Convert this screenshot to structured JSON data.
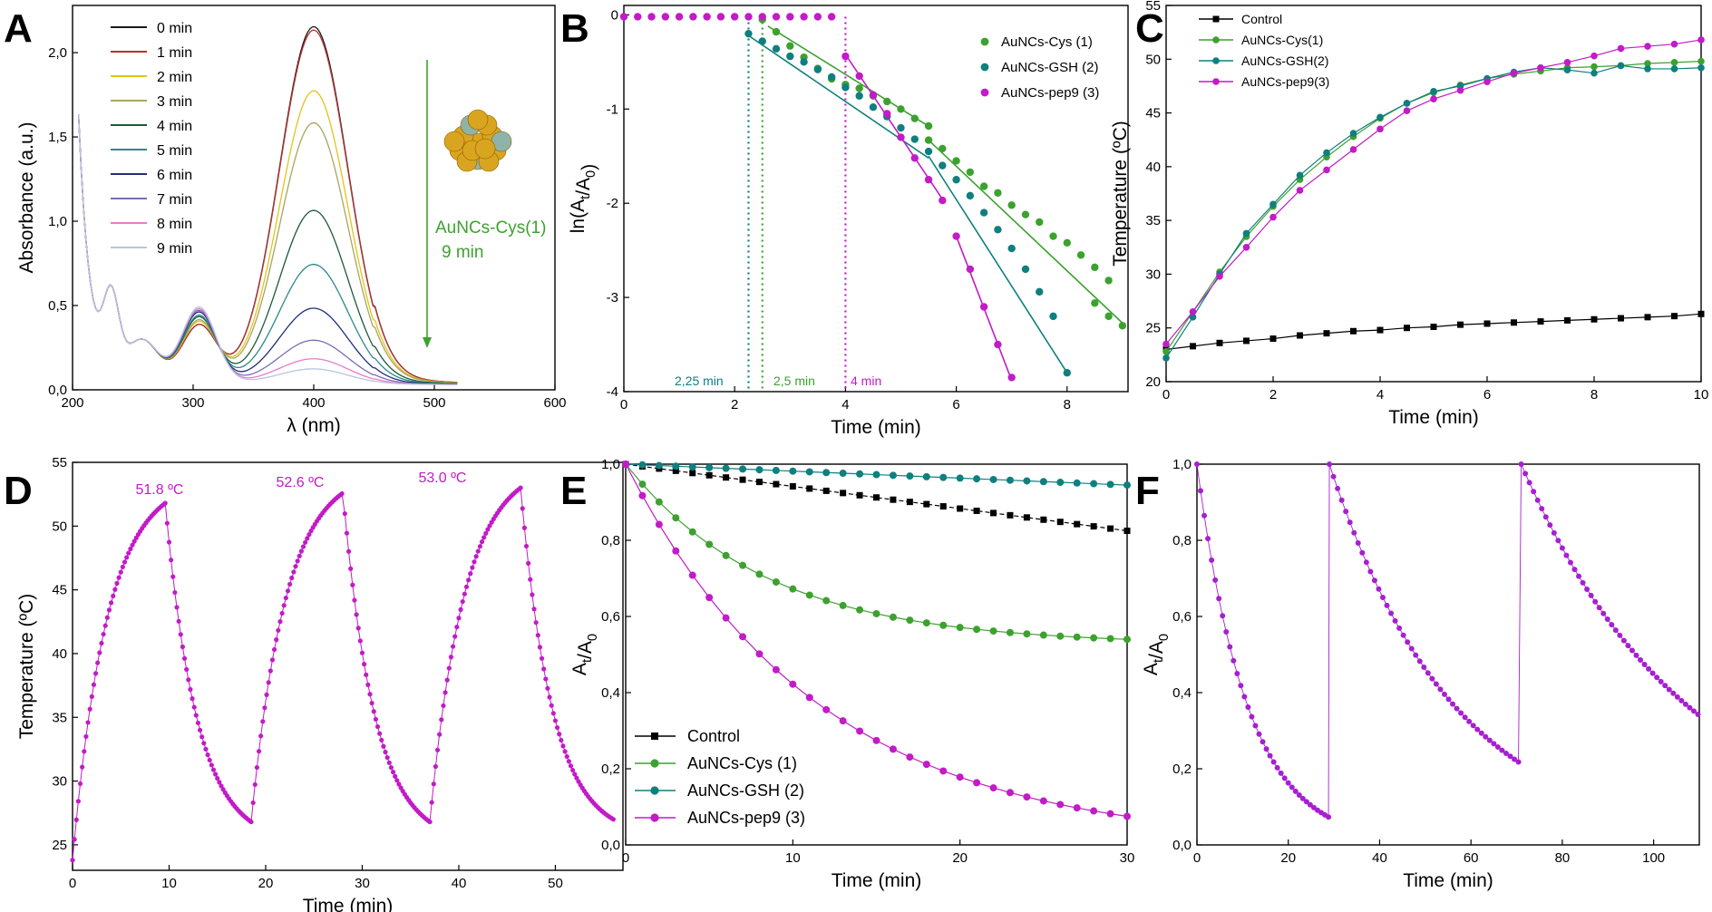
{
  "colors": {
    "green": "#3da12f",
    "teal": "#0f7f7f",
    "magenta": "#c21bc7",
    "magenta_light": "#e060e6",
    "purple": "#a61fd0",
    "black": "#000000",
    "cluster": "#d9a520"
  },
  "chart_data": [
    {
      "id": "A",
      "panel_letter": "A",
      "type": "line",
      "xlabel": "λ (nm)",
      "ylabel": "Absorbance (a.u.)",
      "xlim": [
        200,
        600
      ],
      "ylim": [
        0,
        2.28
      ],
      "xticks": [
        200,
        300,
        400,
        500,
        600
      ],
      "yticks": [
        0,
        0.5,
        1.0,
        1.5,
        2.0
      ],
      "ytick_labels": [
        "0,0",
        "0,5",
        "1,0",
        "1,5",
        "2,0"
      ],
      "legend_placement": "top-left",
      "annotation": {
        "label": "AuNCs-Cys(1)",
        "sub": "9 min"
      },
      "series": [
        {
          "name": "0 min",
          "color": "#1a1a1a",
          "peak": 2.12,
          "shoulder": 0.33
        },
        {
          "name": "1 min",
          "color": "#b8332f",
          "peak": 2.1,
          "shoulder": 0.33
        },
        {
          "name": "2 min",
          "color": "#e3c31a",
          "peak": 1.74,
          "shoulder": 0.35
        },
        {
          "name": "3 min",
          "color": "#a7a65e",
          "peak": 1.55,
          "shoulder": 0.36
        },
        {
          "name": "4 min",
          "color": "#1d5a3c",
          "peak": 1.03,
          "shoulder": 0.38
        },
        {
          "name": "5 min",
          "color": "#2b8a88",
          "peak": 0.71,
          "shoulder": 0.39
        },
        {
          "name": "6 min",
          "color": "#1e2f7a",
          "peak": 0.45,
          "shoulder": 0.41
        },
        {
          "name": "7 min",
          "color": "#7b6bb8",
          "peak": 0.26,
          "shoulder": 0.42
        },
        {
          "name": "8 min",
          "color": "#e57ccb",
          "peak": 0.15,
          "shoulder": 0.43
        },
        {
          "name": "9 min",
          "color": "#b9c4de",
          "peak": 0.09,
          "shoulder": 0.44
        }
      ]
    },
    {
      "id": "B",
      "panel_letter": "B",
      "type": "scatter",
      "xlabel": "Time (min)",
      "ylabel": "ln(A_t/A_0)",
      "xlim": [
        0,
        9.1
      ],
      "ylim": [
        -4,
        0.1
      ],
      "xticks": [
        0,
        2,
        4,
        6,
        8
      ],
      "yticks": [
        0,
        -1,
        -2,
        -3,
        -4
      ],
      "legend_placement": "top-right",
      "onsets": [
        {
          "label": "2,25 min",
          "x": 2.25,
          "color": "#0f7f7f"
        },
        {
          "label": "2,5 min",
          "x": 2.5,
          "color": "#3da12f"
        },
        {
          "label": "4 min",
          "x": 4.0,
          "color": "#c21bc7"
        }
      ],
      "series": [
        {
          "name": "AuNCs-Cys (1)",
          "color": "#3da12f",
          "points": [
            [
              2.5,
              -0.05
            ],
            [
              2.75,
              -0.18
            ],
            [
              3.0,
              -0.33
            ],
            [
              3.25,
              -0.45
            ],
            [
              3.5,
              -0.57
            ],
            [
              3.75,
              -0.68
            ],
            [
              4.0,
              -0.74
            ],
            [
              4.25,
              -0.78
            ],
            [
              4.5,
              -0.86
            ],
            [
              4.75,
              -0.92
            ],
            [
              5.0,
              -1.0
            ],
            [
              5.25,
              -1.1
            ],
            [
              5.5,
              -1.18
            ],
            [
              5.5,
              -1.33
            ],
            [
              5.75,
              -1.42
            ],
            [
              6.0,
              -1.55
            ],
            [
              6.25,
              -1.67
            ],
            [
              6.5,
              -1.82
            ],
            [
              6.75,
              -1.89
            ],
            [
              7.0,
              -2.02
            ],
            [
              7.25,
              -2.12
            ],
            [
              7.5,
              -2.2
            ],
            [
              7.75,
              -2.35
            ],
            [
              8.0,
              -2.42
            ],
            [
              8.25,
              -2.55
            ],
            [
              8.5,
              -2.68
            ],
            [
              8.75,
              -2.82
            ],
            [
              8.5,
              -3.06
            ],
            [
              8.75,
              -3.2
            ],
            [
              9.0,
              -3.3
            ]
          ],
          "fits": [
            [
              [
                2.6,
                -0.12
              ],
              [
                5.55,
                -1.2
              ]
            ],
            [
              [
                5.5,
                -1.33
              ],
              [
                9.05,
                -3.3
              ]
            ]
          ]
        },
        {
          "name": "AuNCs-GSH (2)",
          "color": "#0f7f7f",
          "points": [
            [
              2.25,
              -0.2
            ],
            [
              2.5,
              -0.28
            ],
            [
              2.75,
              -0.36
            ],
            [
              3.0,
              -0.44
            ],
            [
              3.25,
              -0.5
            ],
            [
              3.5,
              -0.58
            ],
            [
              3.75,
              -0.66
            ],
            [
              4.0,
              -0.77
            ],
            [
              4.25,
              -0.86
            ],
            [
              4.5,
              -0.98
            ],
            [
              4.75,
              -1.08
            ],
            [
              5.0,
              -1.2
            ],
            [
              5.25,
              -1.32
            ],
            [
              5.5,
              -1.45
            ],
            [
              5.75,
              -1.6
            ],
            [
              6.0,
              -1.75
            ],
            [
              6.25,
              -1.92
            ],
            [
              6.5,
              -2.1
            ],
            [
              6.75,
              -2.28
            ],
            [
              7.0,
              -2.48
            ],
            [
              7.25,
              -2.7
            ],
            [
              7.5,
              -2.94
            ],
            [
              7.75,
              -3.2
            ],
            [
              8.0,
              -3.8
            ]
          ],
          "fits": [
            [
              [
                2.25,
                -0.22
              ],
              [
                5.5,
                -1.52
              ]
            ],
            [
              [
                5.5,
                -1.5
              ],
              [
                8.0,
                -3.8
              ]
            ]
          ]
        },
        {
          "name": "AuNCs-pep9 (3)",
          "color": "#c21bc7",
          "points": [
            [
              0,
              -0.02
            ],
            [
              0.25,
              -0.02
            ],
            [
              0.5,
              -0.02
            ],
            [
              0.75,
              -0.02
            ],
            [
              1.0,
              -0.02
            ],
            [
              1.25,
              -0.02
            ],
            [
              1.5,
              -0.02
            ],
            [
              1.75,
              -0.02
            ],
            [
              2.0,
              -0.02
            ],
            [
              2.25,
              -0.02
            ],
            [
              2.5,
              -0.02
            ],
            [
              2.75,
              -0.02
            ],
            [
              3.0,
              -0.02
            ],
            [
              3.25,
              -0.02
            ],
            [
              3.5,
              -0.02
            ],
            [
              3.75,
              -0.02
            ],
            [
              4.0,
              -0.44
            ],
            [
              4.25,
              -0.65
            ],
            [
              4.5,
              -0.85
            ],
            [
              4.75,
              -1.05
            ],
            [
              5.0,
              -1.3
            ],
            [
              5.25,
              -1.52
            ],
            [
              5.5,
              -1.75
            ],
            [
              5.75,
              -1.97
            ],
            [
              6.0,
              -2.35
            ],
            [
              6.25,
              -2.7
            ],
            [
              6.5,
              -3.1
            ],
            [
              6.75,
              -3.5
            ],
            [
              7.0,
              -3.85
            ]
          ],
          "fits": [
            [
              [
                4.0,
                -0.42
              ],
              [
                5.8,
                -2.0
              ]
            ],
            [
              [
                6.0,
                -2.35
              ],
              [
                7.0,
                -3.88
              ]
            ]
          ]
        }
      ]
    },
    {
      "id": "C",
      "panel_letter": "C",
      "type": "line",
      "xlabel": "Time (min)",
      "ylabel": "Temperature (ºC)",
      "xlim": [
        0,
        10
      ],
      "ylim": [
        20,
        55
      ],
      "xticks": [
        0,
        2,
        4,
        6,
        8,
        10
      ],
      "yticks": [
        20,
        25,
        30,
        35,
        40,
        45,
        50,
        55
      ],
      "legend_placement": "top-left",
      "series": [
        {
          "name": "Control",
          "color": "#000000",
          "marker": "square",
          "x": [
            0,
            0.5,
            1,
            1.5,
            2,
            2.5,
            3,
            3.5,
            4,
            4.5,
            5,
            5.5,
            6,
            6.5,
            7,
            7.5,
            8,
            8.5,
            9,
            9.5,
            10
          ],
          "y": [
            23,
            23.3,
            23.6,
            23.8,
            24,
            24.3,
            24.5,
            24.7,
            24.8,
            25,
            25.1,
            25.3,
            25.4,
            25.5,
            25.6,
            25.7,
            25.8,
            25.9,
            26,
            26.1,
            26.3
          ]
        },
        {
          "name": "AuNCs-Cys(1)",
          "color": "#3da12f",
          "marker": "circle",
          "x": [
            0,
            0.5,
            1,
            1.5,
            2,
            2.5,
            3,
            3.5,
            4,
            4.5,
            5,
            5.5,
            6,
            6.5,
            7,
            7.5,
            8,
            8.5,
            9,
            9.5,
            10
          ],
          "y": [
            22.8,
            26.5,
            30.2,
            33.5,
            36.3,
            38.8,
            40.9,
            42.8,
            44.5,
            45.9,
            46.9,
            47.6,
            48.2,
            48.6,
            48.9,
            49.2,
            49.3,
            49.4,
            49.6,
            49.7,
            49.8
          ]
        },
        {
          "name": "AuNCs-GSH(2)",
          "color": "#0f7f7f",
          "marker": "circle",
          "x": [
            0,
            0.5,
            1,
            1.5,
            2,
            2.5,
            3,
            3.5,
            4,
            4.5,
            5,
            5.5,
            6,
            6.5,
            7,
            7.5,
            8,
            8.5,
            9,
            9.5,
            10
          ],
          "y": [
            22.2,
            26.0,
            30.0,
            33.8,
            36.5,
            39.2,
            41.3,
            43.1,
            44.6,
            45.9,
            47.0,
            47.5,
            48.2,
            48.8,
            49.2,
            49.0,
            48.7,
            49.4,
            49.1,
            49.1,
            49.2
          ]
        },
        {
          "name": "AuNCs-pep9(3)",
          "color": "#c21bc7",
          "marker": "circle",
          "x": [
            0,
            0.5,
            1,
            1.5,
            2,
            2.5,
            3,
            3.5,
            4,
            4.5,
            5,
            5.5,
            6,
            6.5,
            7,
            7.5,
            8,
            8.5,
            9,
            9.5,
            10
          ],
          "y": [
            23.5,
            26.5,
            29.8,
            32.5,
            35.3,
            37.8,
            39.7,
            41.6,
            43.5,
            45.2,
            46.3,
            47.1,
            47.9,
            48.7,
            49.2,
            49.7,
            50.3,
            51.0,
            51.2,
            51.4,
            51.8
          ]
        }
      ]
    },
    {
      "id": "D",
      "panel_letter": "D",
      "type": "scatter",
      "xlabel": "Time (min)",
      "ylabel": "Temperature (ºC)",
      "xlim": [
        0,
        57
      ],
      "ylim": [
        23,
        55
      ],
      "xticks": [
        0,
        10,
        20,
        30,
        40,
        50
      ],
      "yticks": [
        25,
        30,
        35,
        40,
        45,
        50,
        55
      ],
      "annotations": [
        {
          "label": "51.8 ºC",
          "x": 9.5,
          "y": 51.8
        },
        {
          "label": "52.6 ºC",
          "x": 27.6,
          "y": 52.6
        },
        {
          "label": "53.0 ºC",
          "x": 46.0,
          "y": 53.0
        }
      ],
      "cycles": [
        {
          "heat_start": 0,
          "heat_end": 9.6,
          "t_start": 23.8,
          "t_max": 51.8,
          "cool_end": 18.5,
          "t_min": 26.8
        },
        {
          "heat_start": 18.5,
          "heat_end": 28.0,
          "t_start": 26.8,
          "t_max": 52.6,
          "cool_end": 37.0,
          "t_min": 26.8
        },
        {
          "heat_start": 37.0,
          "heat_end": 46.4,
          "t_start": 26.8,
          "t_max": 53.0,
          "cool_end": 56.0,
          "t_min": 27.0
        }
      ]
    },
    {
      "id": "E",
      "panel_letter": "E",
      "type": "line",
      "xlabel": "Time (min)",
      "ylabel": "A_t/A_0",
      "xlim": [
        0,
        30
      ],
      "ylim": [
        0,
        1.0
      ],
      "xticks": [
        0,
        10,
        20,
        30
      ],
      "yticks": [
        0,
        0.2,
        0.4,
        0.6,
        0.8,
        1.0
      ],
      "ytick_labels": [
        "0,0",
        "0,2",
        "0,4",
        "0,6",
        "0,8",
        "1,0"
      ],
      "legend_placement": "bottom-left",
      "series": [
        {
          "name": "Control",
          "color": "#000000",
          "marker": "square",
          "end_value": 0.825
        },
        {
          "name": "AuNCs-Cys (1)",
          "color": "#3da12f",
          "marker": "circle",
          "end_value": 0.54
        },
        {
          "name": "AuNCs-GSH (2)",
          "color": "#0f7f7f",
          "marker": "circle",
          "end_value": 0.945
        },
        {
          "name": "AuNCs-pep9 (3)",
          "color": "#c21bc7",
          "marker": "circle",
          "end_value": 0.075
        }
      ]
    },
    {
      "id": "F",
      "panel_letter": "F",
      "type": "scatter",
      "xlabel": "Time (min)",
      "ylabel": "A_t/A_0",
      "xlim": [
        0,
        110
      ],
      "ylim": [
        0,
        1.0
      ],
      "xticks": [
        0,
        20,
        40,
        60,
        80,
        100
      ],
      "yticks": [
        0,
        0.2,
        0.4,
        0.6,
        0.8,
        1.0
      ],
      "ytick_labels": [
        "0,0",
        "0,2",
        "0,4",
        "0,6",
        "0,8",
        "1,0"
      ],
      "segments": [
        {
          "x_start": 0,
          "x_end": 29,
          "y_end": 0.072
        },
        {
          "x_start": 29,
          "x_end": 71,
          "y_end": 0.213
        },
        {
          "x_start": 71,
          "x_end": 110,
          "y_end": 0.34
        }
      ]
    }
  ]
}
